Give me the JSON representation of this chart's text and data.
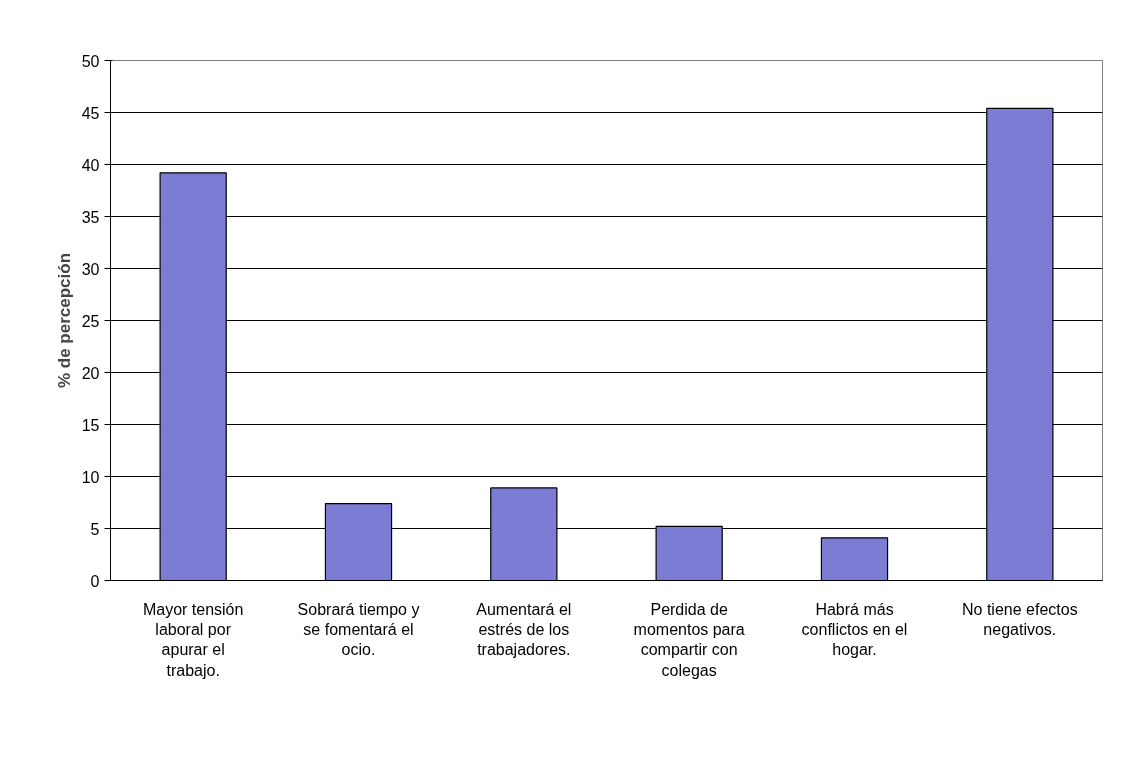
{
  "chart_data": {
    "type": "bar",
    "ylabel": "% de percepción",
    "categories": [
      "Mayor tensión laboral por apurar el trabajo.",
      "Sobrará tiempo y se fomentará el ocio.",
      "Aumentará el estrés de los trabajadores.",
      "Perdida de momentos para compartir con colegas",
      "Habrá más conflictos en el hogar.",
      "No tiene efectos negativos."
    ],
    "values": [
      39.2,
      7.4,
      8.9,
      5.2,
      4.1,
      45.4
    ],
    "color": "#7c7cd4",
    "ylim": [
      0,
      50
    ],
    "yticks": [
      0,
      5,
      10,
      15,
      20,
      25,
      30,
      35,
      40,
      45,
      50
    ],
    "grid": "y"
  }
}
